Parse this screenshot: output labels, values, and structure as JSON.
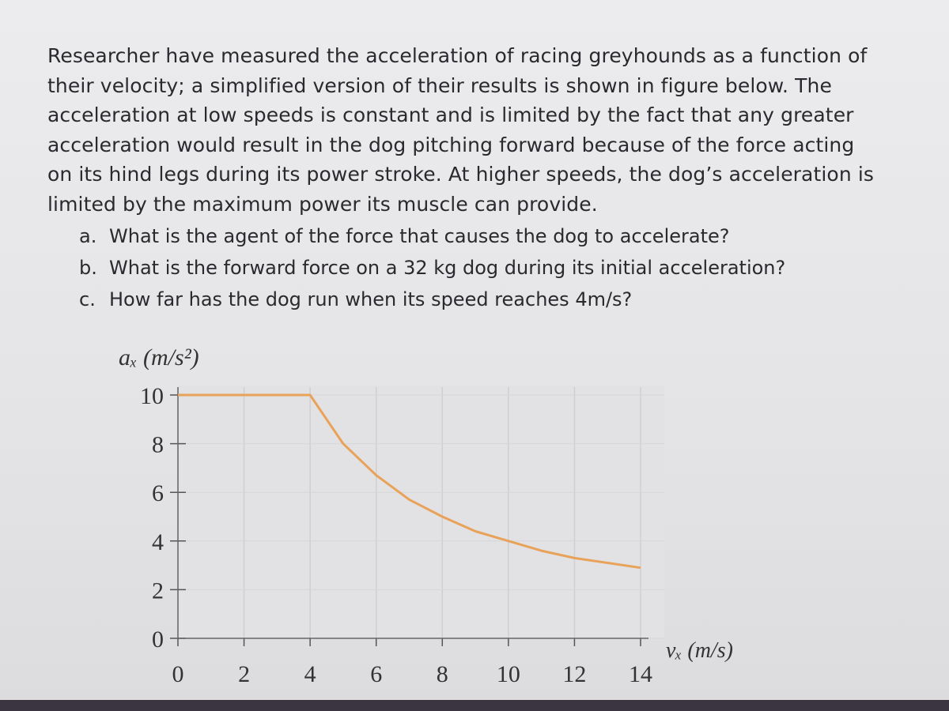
{
  "problem": {
    "lines": [
      "Researcher have measured the acceleration of racing greyhounds as a function of",
      "their velocity; a simplified version of their results is shown in figure below. The",
      "acceleration at low speeds is constant and is limited by the fact that any greater",
      "acceleration would result in the dog pitching forward because of the force acting",
      "on its hind legs during its power stroke. At higher speeds, the dog’s acceleration is",
      "limited by the maximum power its muscle can provide."
    ],
    "questions": [
      {
        "label": "a.",
        "text": "What is the agent of the force that causes the dog to accelerate?"
      },
      {
        "label": "b.",
        "text": "What is the forward force on a 32 kg dog during its initial acceleration?"
      },
      {
        "label": "c.",
        "text": "How far has the dog run when its speed reaches 4m/s?"
      }
    ]
  },
  "chart_data": {
    "type": "line",
    "ylabel": "aₓ (m/s²)",
    "xlabel": "vₓ (m/s)",
    "x": [
      0,
      4,
      5,
      6,
      7,
      8,
      9,
      10,
      11,
      12,
      13,
      14
    ],
    "values": [
      10,
      10,
      8,
      6.7,
      5.7,
      5,
      4.4,
      4,
      3.6,
      3.3,
      3.1,
      2.9
    ],
    "color": "#e8a25a",
    "xlim": [
      0,
      14
    ],
    "ylim": [
      0,
      10
    ],
    "xticks": [
      0,
      2,
      4,
      6,
      8,
      10,
      12,
      14
    ],
    "yticks": [
      0,
      2,
      4,
      6,
      8,
      10
    ],
    "grid": true
  }
}
